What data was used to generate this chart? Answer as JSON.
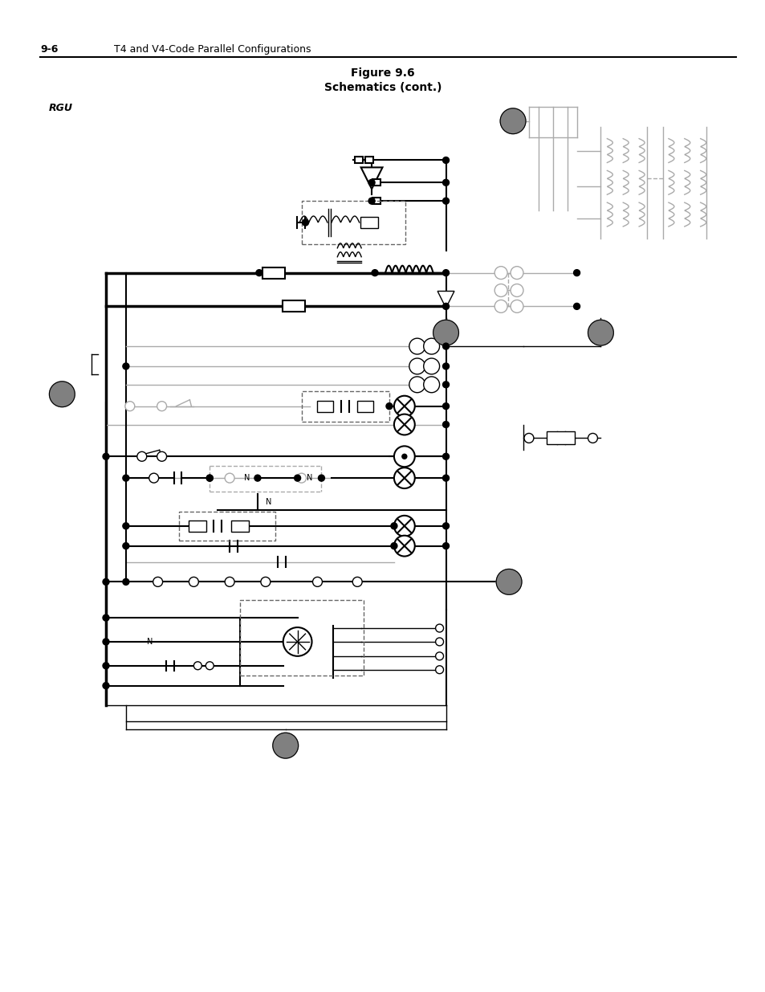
{
  "page_header_number": "9-6",
  "page_header_text": "T4 and V4-Code Parallel Configurations",
  "title_line1": "Figure 9.6",
  "title_line2": "Schematics (cont.)",
  "rgu_label": "RGU",
  "bg_color": "#ffffff",
  "lc": "#000000",
  "glc": "#aaaaaa",
  "dashed_color": "#666666",
  "circle_fill": "#808080"
}
